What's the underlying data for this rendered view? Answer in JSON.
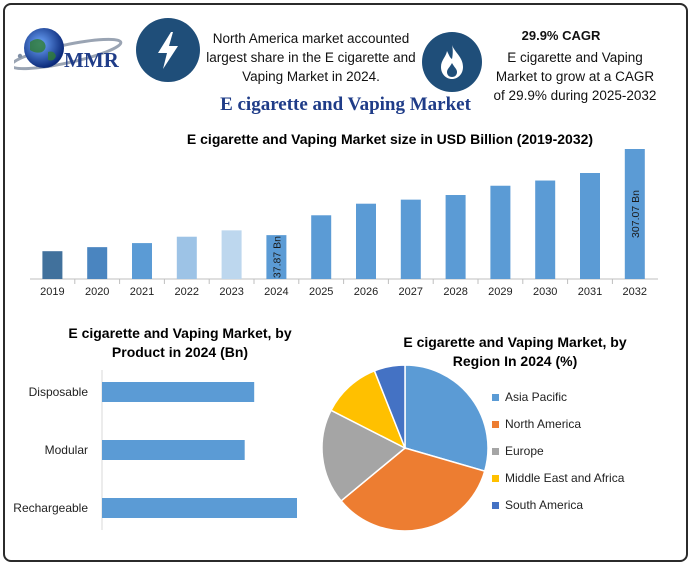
{
  "header": {
    "logo_text": "MMR",
    "left_info": "North America market accounted largest share in the E cigarette and Vaping Market in 2024.",
    "cagr_title": "29.9% CAGR",
    "cagr_text": "E cigarette and Vaping Market to grow at a CAGR of 29.9% during 2025-2032",
    "main_title": "E cigarette and Vaping Market"
  },
  "icons": {
    "bolt": "lightning-bolt-icon",
    "flame": "flame-icon",
    "globe": "globe-icon"
  },
  "colors": {
    "navy": "#1f4e79",
    "title_blue": "#1f3c88",
    "bar_blue": "#5b9bd5"
  },
  "chart_data": [
    {
      "type": "bar",
      "title": "E cigarette and Vaping Market size in USD Billion (2019-2032)",
      "categories": [
        "2019",
        "2020",
        "2021",
        "2022",
        "2023",
        "2024",
        "2025",
        "2026",
        "2027",
        "2028",
        "2029",
        "2030",
        "2031",
        "2032"
      ],
      "values": [
        24,
        27.5,
        31,
        36.5,
        42,
        37.87,
        55,
        65,
        68.5,
        72.5,
        80.5,
        85,
        91.5,
        307.07
      ],
      "bar_colors": [
        "#41719c",
        "#4a85c0",
        "#5b9bd5",
        "#9dc3e6",
        "#bdd7ee",
        "#5b9bd5",
        "#5b9bd5",
        "#5b9bd5",
        "#5b9bd5",
        "#5b9bd5",
        "#5b9bd5",
        "#5b9bd5",
        "#5b9bd5",
        "#5b9bd5"
      ],
      "data_labels": {
        "2024": "37.87 Bn",
        "2032": "307.07 Bn"
      },
      "grid": false
    },
    {
      "type": "bar",
      "orientation": "horizontal",
      "title": "E cigarette and Vaping Market, by Product in 2024 (Bn)",
      "categories": [
        "Disposable",
        "Modular",
        "Rechargeable"
      ],
      "values": [
        16,
        15,
        20.5
      ],
      "color": "#5b9bd5",
      "grid": false
    },
    {
      "type": "pie",
      "title": "E cigarette and Vaping Market, by Region In 2024 (%)",
      "labels": [
        "Asia Pacific",
        "North America",
        "Europe",
        "Middle East and Africa",
        "South America"
      ],
      "values": [
        29.5,
        34.5,
        18.5,
        11.5,
        6
      ],
      "colors": [
        "#5b9bd5",
        "#ed7d31",
        "#a5a5a5",
        "#ffc000",
        "#4472c4"
      ],
      "legend_position": "right"
    }
  ]
}
